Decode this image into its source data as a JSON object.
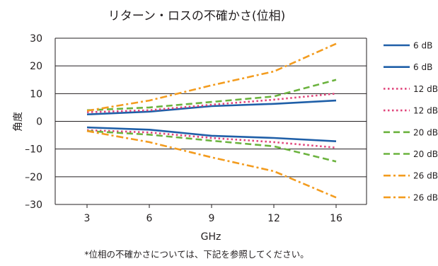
{
  "chart_data": {
    "type": "line",
    "title": "リターン・ロスの不確かさ(位相)",
    "xlabel": "GHz",
    "ylabel": "角度",
    "x": [
      3,
      6,
      9,
      12,
      16
    ],
    "xlim": [
      3,
      16
    ],
    "ylim": [
      -30,
      30
    ],
    "yticks": [
      "30",
      "20",
      "10",
      "0",
      "–10",
      "–20",
      "–30"
    ],
    "ytick_values": [
      30,
      20,
      10,
      0,
      -10,
      -20,
      -30
    ],
    "xticks": [
      "3",
      "6",
      "9",
      "12",
      "16"
    ],
    "grid": "horizontal",
    "legend_position": "right",
    "series": [
      {
        "name": "6 dB",
        "color": "#1f5fa8",
        "dash": "solid",
        "values": [
          2.5,
          3.5,
          5.5,
          6.3,
          7.5
        ]
      },
      {
        "name": "6 dB",
        "color": "#1f5fa8",
        "dash": "solid",
        "values": [
          -2.2,
          -3,
          -5.2,
          -6,
          -7.2
        ]
      },
      {
        "name": "12 dB",
        "color": "#e0457b",
        "dash": "dot",
        "values": [
          3.3,
          4,
          6,
          7.8,
          10
        ]
      },
      {
        "name": "12 dB",
        "color": "#e0457b",
        "dash": "dot",
        "values": [
          -3.2,
          -4,
          -6,
          -7.5,
          -9.5
        ]
      },
      {
        "name": "20 dB",
        "color": "#6cb33f",
        "dash": "dash",
        "values": [
          4,
          5,
          7,
          9,
          15
        ]
      },
      {
        "name": "20 dB",
        "color": "#6cb33f",
        "dash": "dash",
        "values": [
          -3.5,
          -4.8,
          -7,
          -9,
          -14.5
        ]
      },
      {
        "name": "26 dB",
        "color": "#f39c1f",
        "dash": "dashdot",
        "values": [
          3.8,
          7.5,
          13,
          18,
          28
        ]
      },
      {
        "name": "26 dB",
        "color": "#f39c1f",
        "dash": "dashdot",
        "values": [
          -3.5,
          -7.5,
          -13,
          -18,
          -27.5
        ]
      }
    ]
  },
  "footnote": "*位相の不確かさについては、下記を参照してください。"
}
